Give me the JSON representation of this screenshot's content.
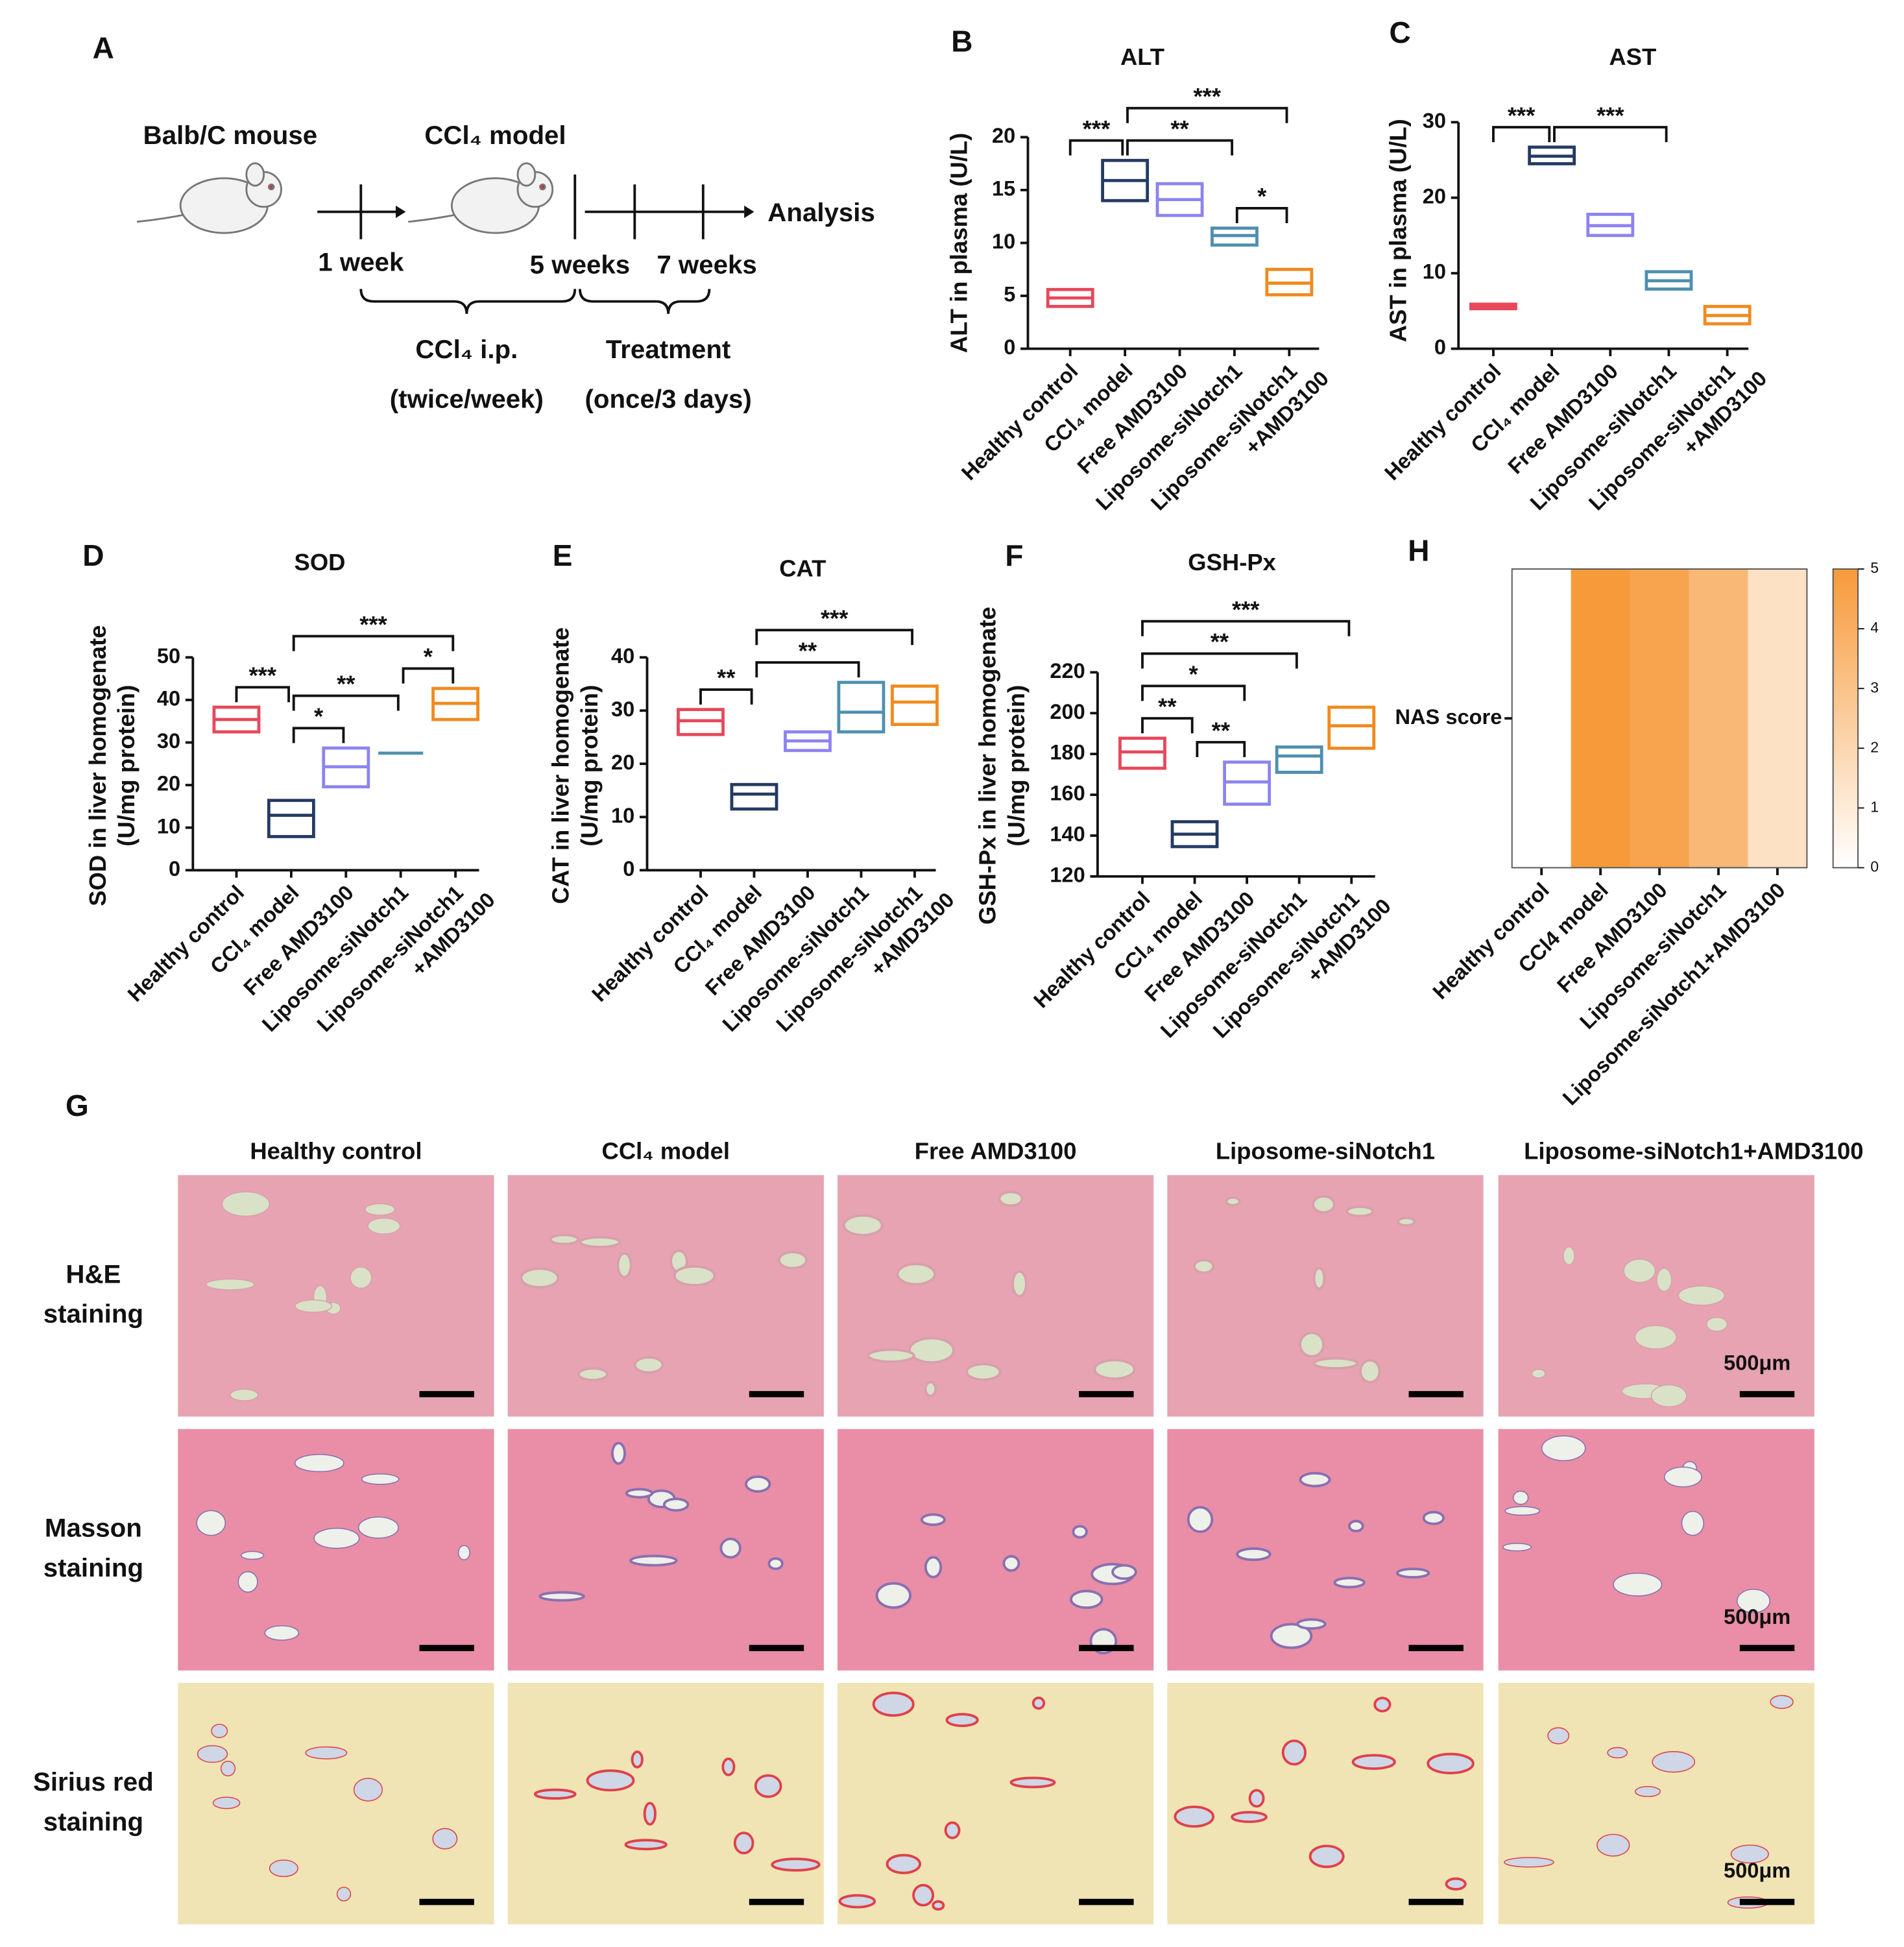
{
  "diagram": {
    "panel": "A",
    "start": "Balb/C mouse",
    "model": "CCl₄ model",
    "t1": "1 week",
    "t2": "5 weeks",
    "t3": "7 weeks",
    "end": "Analysis",
    "phase1": [
      "CCl₄ i.p.",
      "(twice/week)"
    ],
    "phase2": [
      "Treatment",
      "(once/3 days)"
    ]
  },
  "chart_data": [
    {
      "panel": "B",
      "type": "box",
      "title": "ALT",
      "ylabel": [
        "ALT in plasma (U/L)"
      ],
      "categories": [
        "Healthy control",
        "CCl₄ model",
        "Free AMD3100",
        "Liposome-siNotch1",
        [
          "Liposome-siNotch1",
          "+AMD3100"
        ]
      ],
      "colors": [
        "#e8475a",
        "#243b63",
        "#8c84f0",
        "#4f8fb0",
        "#f08a1e"
      ],
      "low": [
        4,
        14,
        12.6,
        9.8,
        5.1
      ],
      "median": [
        4.8,
        15.9,
        14.1,
        10.7,
        6.2
      ],
      "high": [
        5.6,
        17.8,
        15.6,
        11.4,
        7.5
      ],
      "ylim": [
        0,
        20
      ],
      "yticks": [
        0,
        5,
        10,
        15,
        20
      ],
      "brackets": [
        {
          "from": 3,
          "to": 4,
          "label": "*"
        },
        {
          "from": 0,
          "to": 1,
          "label": "***"
        },
        {
          "from": 1,
          "to": 3,
          "label": "**"
        },
        {
          "from": 1,
          "to": 4,
          "label": "***"
        }
      ]
    },
    {
      "panel": "C",
      "type": "box",
      "title": "AST",
      "ylabel": [
        "AST in plasma (U/L)"
      ],
      "categories": [
        "Healthy control",
        "CCl₄ model",
        "Free AMD3100",
        "Liposome-siNotch1",
        [
          "Liposome-siNotch1",
          "+AMD3100"
        ]
      ],
      "colors": [
        "#e8475a",
        "#243b63",
        "#8c84f0",
        "#4f8fb0",
        "#f08a1e"
      ],
      "low": [
        5.3,
        24.5,
        15,
        7.9,
        3.3
      ],
      "median": [
        5.6,
        25.5,
        16.3,
        9,
        4.4
      ],
      "high": [
        5.9,
        26.7,
        17.8,
        10.2,
        5.6
      ],
      "ylim": [
        0,
        30
      ],
      "yticks": [
        0,
        10,
        20,
        30
      ],
      "brackets": [
        {
          "from": 0,
          "to": 1,
          "label": "***"
        },
        {
          "from": 1,
          "to": 3,
          "label": "***"
        }
      ]
    },
    {
      "panel": "D",
      "type": "box",
      "title": "SOD",
      "ylabel": [
        "SOD in liver homogenate",
        "(U/mg protein)"
      ],
      "categories": [
        "Healthy control",
        "CCl₄ model",
        "Free AMD3100",
        "Liposome-siNotch1",
        [
          "Liposome-siNotch1",
          "+AMD3100"
        ]
      ],
      "colors": [
        "#e8475a",
        "#243b63",
        "#8c84f0",
        "#4f8fb0",
        "#f08a1e"
      ],
      "low": [
        32.5,
        7.9,
        19.6,
        27.5,
        35.4
      ],
      "median": [
        35.4,
        12.9,
        24.3,
        27.5,
        39.2
      ],
      "high": [
        38.3,
        16.4,
        28.7,
        27.5,
        42.7
      ],
      "ylim": [
        0,
        50
      ],
      "yticks": [
        0,
        10,
        20,
        30,
        40,
        50
      ],
      "brackets": [
        {
          "from": 0,
          "to": 1,
          "label": "***"
        },
        {
          "from": 1,
          "to": 2,
          "label": "*"
        },
        {
          "from": 3,
          "to": 4,
          "label": "*"
        },
        {
          "from": 1,
          "to": 3,
          "label": "**"
        },
        {
          "from": 1,
          "to": 4,
          "label": "***"
        }
      ]
    },
    {
      "panel": "E",
      "type": "box",
      "title": "CAT",
      "ylabel": [
        "CAT in liver homogenate",
        "(U/mg protein)"
      ],
      "categories": [
        "Healthy control",
        "CCl₄ model",
        "Free AMD3100",
        "Liposome-siNotch1",
        [
          "Liposome-siNotch1",
          "+AMD3100"
        ]
      ],
      "colors": [
        "#e8475a",
        "#243b63",
        "#8c84f0",
        "#4f8fb0",
        "#f08a1e"
      ],
      "low": [
        25.5,
        11.5,
        22.5,
        26,
        27.4
      ],
      "median": [
        28.1,
        14.3,
        24.3,
        29.7,
        31.6
      ],
      "high": [
        30.2,
        16.1,
        26,
        35.3,
        34.6
      ],
      "ylim": [
        0,
        40
      ],
      "yticks": [
        0,
        10,
        20,
        30,
        40
      ],
      "brackets": [
        {
          "from": 0,
          "to": 1,
          "label": "**"
        },
        {
          "from": 1,
          "to": 3,
          "label": "**"
        },
        {
          "from": 1,
          "to": 4,
          "label": "***"
        }
      ]
    },
    {
      "panel": "F",
      "type": "box",
      "title": "GSH-Px",
      "ylabel": [
        "GSH-Px in liver homogenate",
        "(U/mg protein)"
      ],
      "categories": [
        "Healthy control",
        "CCl₄ model",
        "Free AMD3100",
        "Liposome-siNotch1",
        [
          "Liposome-siNotch1",
          "+AMD3100"
        ]
      ],
      "colors": [
        "#e8475a",
        "#243b63",
        "#8c84f0",
        "#4f8fb0",
        "#f08a1e"
      ],
      "low": [
        173,
        134.6,
        155.4,
        171,
        182.8
      ],
      "median": [
        181,
        140.7,
        166.3,
        179,
        193.8
      ],
      "high": [
        187.7,
        146.8,
        176,
        183.4,
        202.9
      ],
      "ylim": [
        120,
        220
      ],
      "yticks": [
        120,
        140,
        160,
        180,
        200,
        220
      ],
      "brackets": [
        {
          "from": 0,
          "to": 1,
          "label": "**"
        },
        {
          "from": 1,
          "to": 2,
          "label": "**"
        },
        {
          "from": 0,
          "to": 2,
          "label": "*"
        },
        {
          "from": 0,
          "to": 3,
          "label": "**"
        },
        {
          "from": 0,
          "to": 4,
          "label": "***"
        }
      ]
    },
    {
      "panel": "H",
      "type": "heatmap",
      "ylabel": "NAS score",
      "categories": [
        "Healthy control",
        "CCl4 model",
        "Free AMD3100",
        "Liposome-siNotch1",
        "Liposome-siNotch1+AMD3100"
      ],
      "values": [
        0,
        5,
        4.5,
        3.5,
        1.5
      ],
      "colormap": [
        "#ffffff",
        "#f79a3a"
      ],
      "clim": [
        0,
        5
      ],
      "cticks": [
        0,
        1,
        2,
        3,
        4,
        5
      ]
    }
  ],
  "histology": {
    "panel": "G",
    "columns": [
      "Healthy control",
      "CCl₄ model",
      "Free AMD3100",
      "Liposome-siNotch1",
      "Liposome-siNotch1+AMD3100"
    ],
    "rows": [
      [
        "H&E",
        "staining"
      ],
      [
        "Masson",
        "staining"
      ],
      [
        "Sirius red",
        "staining"
      ]
    ],
    "scale_bar": "500μm"
  }
}
